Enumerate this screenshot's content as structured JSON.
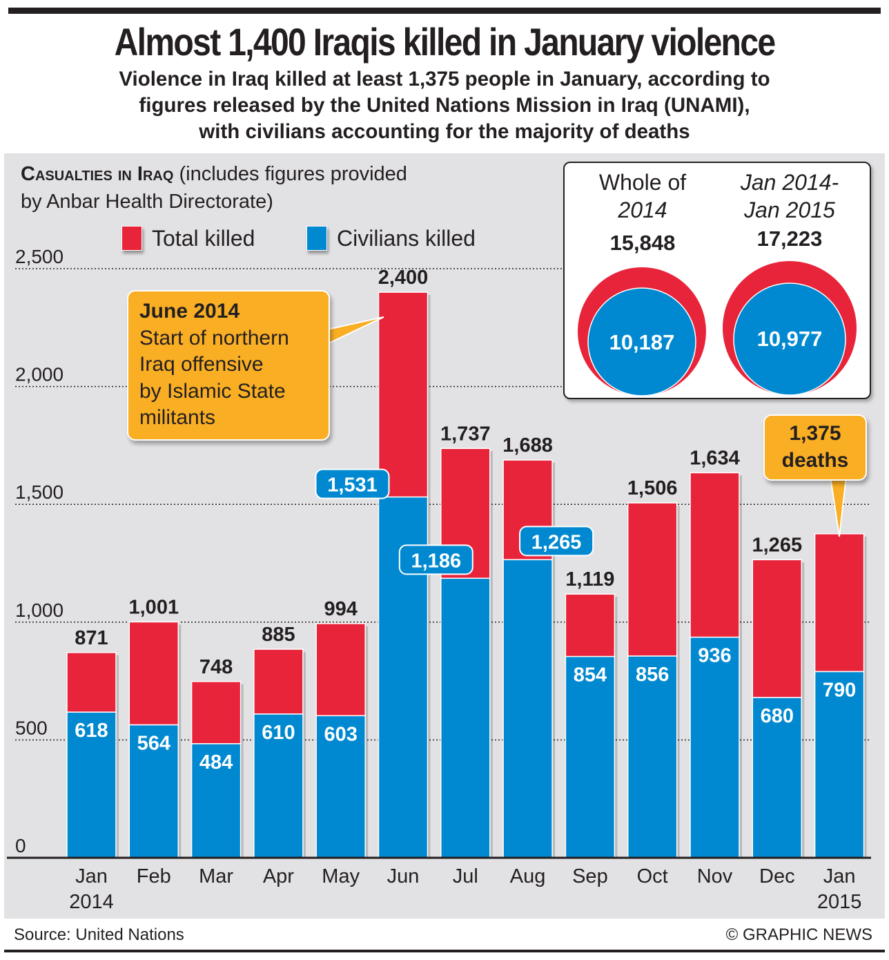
{
  "header": {
    "title": "Almost 1,400 Iraqis killed in January violence",
    "subtitle_lines": [
      "Violence in Iraq killed at least 1,375 people in January, according to",
      "figures released by the United Nations Mission in Iraq (UNAMI),",
      "with civilians accounting for the majority of deaths"
    ]
  },
  "chart_heading": {
    "caps": "Casualties in Iraq",
    "rest_line1": " (includes figures provided",
    "line2": "by Anbar Health Directorate)"
  },
  "colors": {
    "total": "#e8243a",
    "civilians": "#0089d0",
    "callout": "#f9ae24",
    "panel": "#e2e1e3",
    "text": "#231f20"
  },
  "chart_data": {
    "type": "bar",
    "stacked": "overlapping",
    "title": "Casualties in Iraq",
    "xlabel": "",
    "ylabel": "",
    "ylim": [
      0,
      2500
    ],
    "yticks": [
      0,
      500,
      1000,
      1500,
      2000,
      2500
    ],
    "ytick_labels": [
      "0",
      "500",
      "1,000",
      "1,500",
      "2,000",
      "2,500"
    ],
    "grid": "horizontal dotted",
    "legend": "top-left",
    "categories": [
      "Jan 2014",
      "Feb",
      "Mar",
      "Apr",
      "May",
      "Jun",
      "Jul",
      "Aug",
      "Sep",
      "Oct",
      "Nov",
      "Dec",
      "Jan 2015"
    ],
    "category_lines": [
      [
        "Jan",
        "2014"
      ],
      [
        "Feb"
      ],
      [
        "Mar"
      ],
      [
        "Apr"
      ],
      [
        "May"
      ],
      [
        "Jun"
      ],
      [
        "Jul"
      ],
      [
        "Aug"
      ],
      [
        "Sep"
      ],
      [
        "Oct"
      ],
      [
        "Nov"
      ],
      [
        "Dec"
      ],
      [
        "Jan",
        "2015"
      ]
    ],
    "series": [
      {
        "name": "Total killed",
        "color": "#e8243a",
        "values": [
          871,
          1001,
          748,
          885,
          994,
          2400,
          1737,
          1688,
          1119,
          1506,
          1634,
          1265,
          1375
        ],
        "labels": [
          "871",
          "1,001",
          "748",
          "885",
          "994",
          "2,400",
          "1,737",
          "1,688",
          "1,119",
          "1,506",
          "1,634",
          "1,265",
          ""
        ]
      },
      {
        "name": "Civilians killed",
        "color": "#0089d0",
        "values": [
          618,
          564,
          484,
          610,
          603,
          1531,
          1186,
          1265,
          854,
          856,
          936,
          680,
          790
        ],
        "labels": [
          "618",
          "564",
          "484",
          "610",
          "603",
          "1,531",
          "1,186",
          "1,265",
          "854",
          "856",
          "936",
          "680",
          "790"
        ]
      }
    ],
    "annotations": [
      {
        "month": "Jun",
        "title": "June 2014",
        "lines": [
          "Start of northern",
          "Iraq offensive",
          "by Islamic State",
          "militants"
        ]
      },
      {
        "month": "Jan 2015",
        "lines": [
          "1,375",
          "deaths"
        ]
      }
    ]
  },
  "inset": {
    "items": [
      {
        "label_line1": "Whole of",
        "label_line2": "2014",
        "total": "15,848",
        "civilians": "10,187",
        "total_value": 15848,
        "civilians_value": 10187
      },
      {
        "label_line1": "Jan 2014-",
        "label_line2": "Jan 2015",
        "total": "17,223",
        "civilians": "10,977",
        "total_value": 17223,
        "civilians_value": 10977
      }
    ]
  },
  "footer": {
    "source": "Source: United Nations",
    "credit": "© GRAPHIC NEWS"
  }
}
